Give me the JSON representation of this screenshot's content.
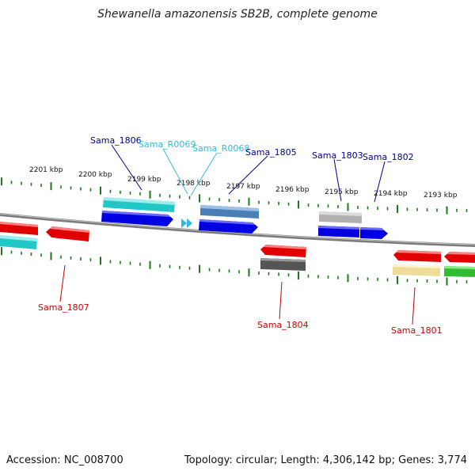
{
  "title": "Shewanella amazonensis SB2B, complete genome",
  "footer": {
    "accession": "Accession: NC_008700",
    "topology": "Topology: circular; Length: 4,306,142 bp; Genes: 3,774"
  },
  "colors": {
    "label_forward": "#00008b",
    "label_reverse": "#cc0000",
    "label_rna": "#33bbdd",
    "tick": "#1a7a1a",
    "backbone": "#808080"
  },
  "scale_labels": [
    "2201 kbp",
    "2200 kbp",
    "2199 kbp",
    "2198 kbp",
    "2197 kbp",
    "2196 kbp",
    "2195 kbp",
    "2194 kbp",
    "2193 kbp"
  ],
  "features": [
    {
      "name": "Sama_1806",
      "strand": "+",
      "type": "gene"
    },
    {
      "name": "Sama_R0069",
      "strand": "+",
      "type": "rna"
    },
    {
      "name": "Sama_R0068",
      "strand": "+",
      "type": "rna"
    },
    {
      "name": "Sama_1805",
      "strand": "+",
      "type": "gene"
    },
    {
      "name": "Sama_1803",
      "strand": "+",
      "type": "gene"
    },
    {
      "name": "Sama_1802",
      "strand": "+",
      "type": "gene"
    },
    {
      "name": "Sama_1807",
      "strand": "-",
      "type": "gene"
    },
    {
      "name": "Sama_1804",
      "strand": "-",
      "type": "gene"
    },
    {
      "name": "Sama_1801",
      "strand": "-",
      "type": "gene"
    }
  ]
}
